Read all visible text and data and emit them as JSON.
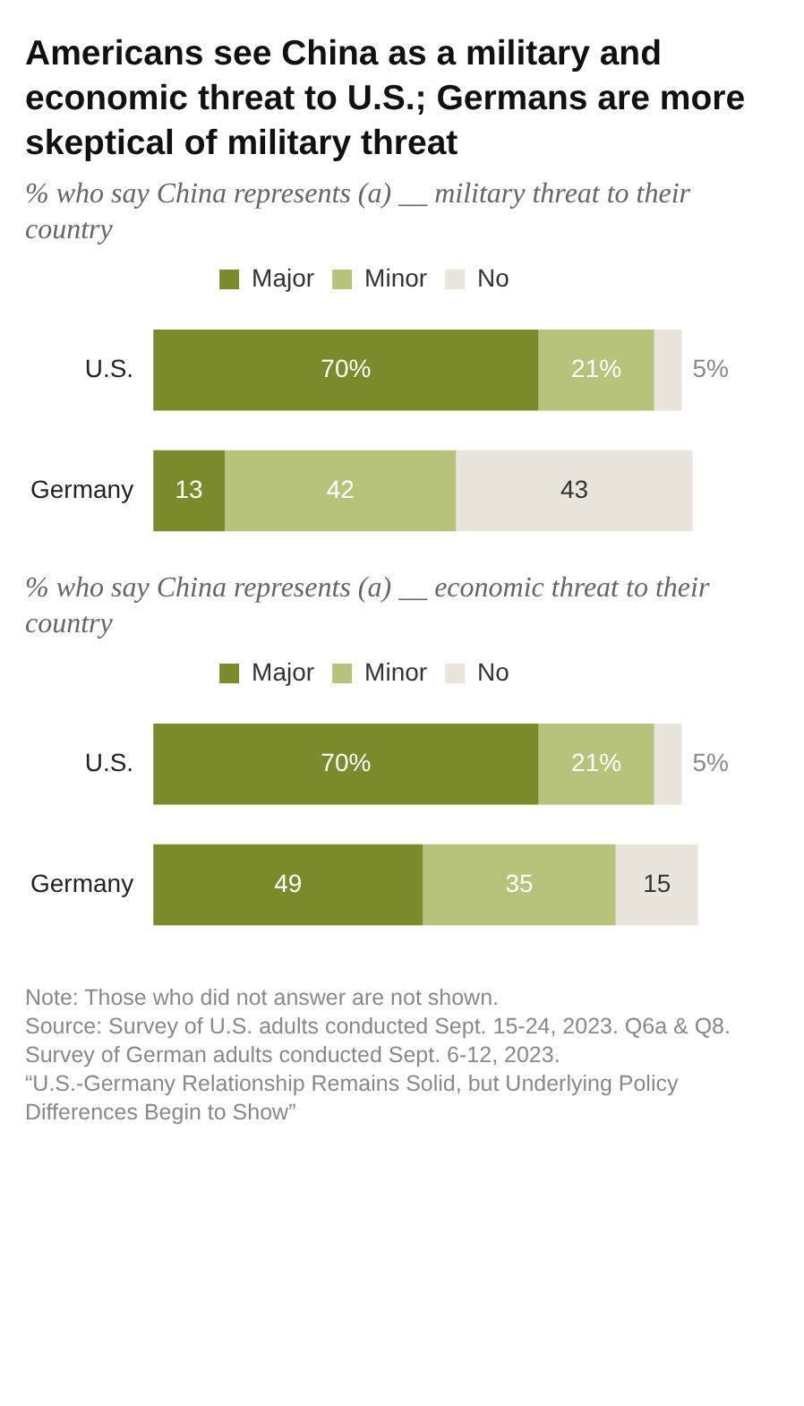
{
  "chart_data": [
    {
      "type": "bar",
      "orientation": "horizontal",
      "stacked": true,
      "title": "Americans see China as a military and economic threat to U.S.; Germans are more skeptical of military threat",
      "subtitle": "% who say China represents (a) __ military threat to their country",
      "categories": [
        "U.S.",
        "Germany"
      ],
      "tick_labels": "y",
      "legend": "top",
      "series": [
        {
          "name": "Major",
          "color": "#7b8b2b",
          "values": [
            70,
            13
          ],
          "value_labels": [
            "70%",
            "13"
          ]
        },
        {
          "name": "Minor",
          "color": "#b7c27a",
          "values": [
            21,
            42
          ],
          "value_labels": [
            "21%",
            "42"
          ]
        },
        {
          "name": "No",
          "color": "#e9e5dc",
          "values": [
            5,
            43
          ],
          "value_labels": [
            "5%",
            "43"
          ]
        }
      ]
    },
    {
      "type": "bar",
      "orientation": "horizontal",
      "stacked": true,
      "subtitle": "% who say China represents (a) __ economic threat to their country",
      "categories": [
        "U.S.",
        "Germany"
      ],
      "tick_labels": "y",
      "legend": "top",
      "series": [
        {
          "name": "Major",
          "color": "#7b8b2b",
          "values": [
            70,
            49
          ],
          "value_labels": [
            "70%",
            "49"
          ]
        },
        {
          "name": "Minor",
          "color": "#b7c27a",
          "values": [
            21,
            35
          ],
          "value_labels": [
            "21%",
            "35"
          ]
        },
        {
          "name": "No",
          "color": "#e9e5dc",
          "values": [
            5,
            15
          ],
          "value_labels": [
            "5%",
            "15"
          ]
        }
      ],
      "annotations": [
        "Note: Those who did not answer are not shown.",
        "Source: Survey of U.S. adults conducted Sept. 15-24, 2023. Q6a & Q8. Survey of German adults conducted Sept. 6-12, 2023.",
        "“U.S.-Germany Relationship Remains Solid, but Underlying Policy Differences Begin to Show”"
      ]
    }
  ]
}
